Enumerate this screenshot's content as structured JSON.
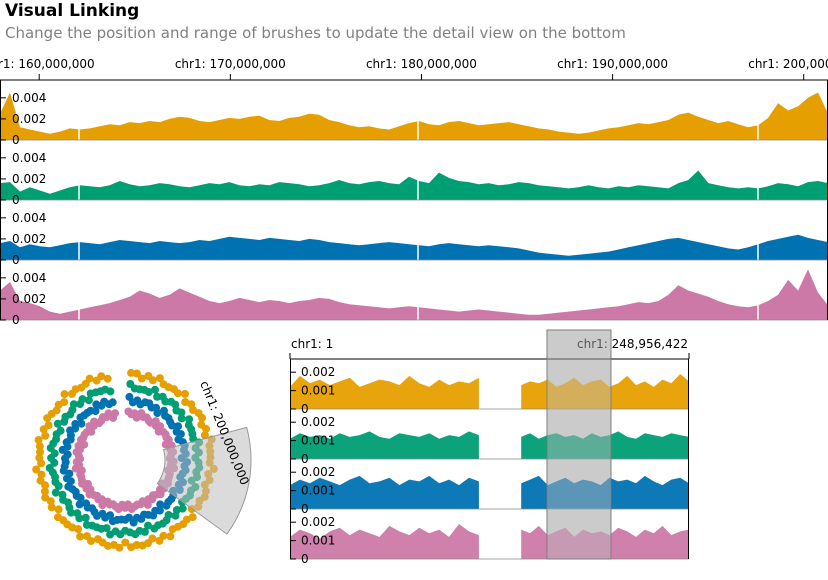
{
  "header": {
    "title": "Visual Linking",
    "subtitle": "Change the position and range of brushes to update the detail view on the bottom"
  },
  "colors": {
    "series": [
      "#E69F00",
      "#009E73",
      "#0072B2",
      "#CC79A7"
    ],
    "brush": "#BDBDBD",
    "axis": "#000000",
    "subtitle": "#808080"
  },
  "chart_data": [
    {
      "type": "area",
      "view": "overview-linear",
      "x_axis": {
        "unit": "genomic position (chr1)",
        "range": [
          160000000,
          200000000
        ],
        "ticks": [
          {
            "value": 160000000,
            "label": "chr1: 160,000,000"
          },
          {
            "value": 170000000,
            "label": "chr1: 170,000,000"
          },
          {
            "value": 180000000,
            "label": "chr1: 180,000,000"
          },
          {
            "value": 190000000,
            "label": "chr1: 190,000,000"
          },
          {
            "value": 200000000,
            "label": "chr1: 200,000,000"
          }
        ]
      },
      "y_ticks": [
        {
          "value": 0,
          "label": "0"
        },
        {
          "value": 0.002,
          "label": "0.002"
        },
        {
          "value": 0.004,
          "label": "0.004"
        }
      ],
      "ylim": [
        0,
        0.0055
      ],
      "series": [
        {
          "values": [
            0.0025,
            0.0045,
            0.0012,
            0.001,
            0.0008,
            0.0006,
            0.0008,
            0.0011,
            0.001,
            0.0011,
            0.0013,
            0.0015,
            0.0014,
            0.0017,
            0.0016,
            0.0018,
            0.0017,
            0.002,
            0.0022,
            0.0021,
            0.0018,
            0.0017,
            0.0019,
            0.0021,
            0.002,
            0.0022,
            0.0023,
            0.0019,
            0.0018,
            0.0021,
            0.0022,
            0.0025,
            0.0024,
            0.0019,
            0.0017,
            0.0014,
            0.0012,
            0.0013,
            0.0011,
            0.001,
            0.0013,
            0.0016,
            0.0018,
            0.0015,
            0.0014,
            0.0017,
            0.0018,
            0.0016,
            0.0014,
            0.0015,
            0.0016,
            0.0017,
            0.0015,
            0.0013,
            0.0011,
            0.001,
            0.0008,
            0.0007,
            0.0006,
            0.0007,
            0.0009,
            0.0011,
            0.0012,
            0.0014,
            0.0016,
            0.0015,
            0.0017,
            0.0019,
            0.0024,
            0.0026,
            0.0022,
            0.0019,
            0.0016,
            0.0018,
            0.0015,
            0.0012,
            0.0014,
            0.0021,
            0.0035,
            0.0028,
            0.0032,
            0.004,
            0.0045,
            0.0025
          ]
        },
        {
          "values": [
            0.0016,
            0.0017,
            0.0008,
            0.0012,
            0.0009,
            0.0006,
            0.0009,
            0.0012,
            0.0014,
            0.0013,
            0.0012,
            0.0014,
            0.0018,
            0.0015,
            0.0013,
            0.0014,
            0.0016,
            0.0015,
            0.0013,
            0.0012,
            0.0014,
            0.0016,
            0.0015,
            0.0017,
            0.0014,
            0.0013,
            0.0015,
            0.0014,
            0.0017,
            0.0016,
            0.0015,
            0.0013,
            0.0014,
            0.0016,
            0.0019,
            0.0016,
            0.0015,
            0.0017,
            0.0018,
            0.0016,
            0.0015,
            0.0022,
            0.0018,
            0.0016,
            0.0026,
            0.0021,
            0.0018,
            0.0017,
            0.0015,
            0.0016,
            0.0014,
            0.0015,
            0.0017,
            0.0016,
            0.0014,
            0.0013,
            0.0012,
            0.0011,
            0.0012,
            0.0014,
            0.0012,
            0.0011,
            0.0013,
            0.0012,
            0.0014,
            0.0013,
            0.0012,
            0.0011,
            0.0016,
            0.0019,
            0.0028,
            0.0016,
            0.0014,
            0.0012,
            0.0011,
            0.0012,
            0.0011,
            0.0013,
            0.0016,
            0.0015,
            0.0013,
            0.0017,
            0.0018,
            0.0016
          ]
        },
        {
          "values": [
            0.0016,
            0.0018,
            0.0012,
            0.0015,
            0.0013,
            0.0012,
            0.0014,
            0.0016,
            0.0017,
            0.0016,
            0.0015,
            0.0017,
            0.0019,
            0.0018,
            0.0017,
            0.0016,
            0.0018,
            0.0017,
            0.0016,
            0.0017,
            0.0019,
            0.0018,
            0.002,
            0.0022,
            0.0021,
            0.002,
            0.0019,
            0.0021,
            0.002,
            0.0019,
            0.0018,
            0.002,
            0.0019,
            0.0017,
            0.0016,
            0.0015,
            0.0014,
            0.0015,
            0.0016,
            0.0017,
            0.0016,
            0.0015,
            0.0014,
            0.0013,
            0.0015,
            0.0016,
            0.0015,
            0.0014,
            0.0013,
            0.0014,
            0.0013,
            0.0012,
            0.0011,
            0.0009,
            0.0007,
            0.0006,
            0.0005,
            0.0004,
            0.0005,
            0.0006,
            0.0007,
            0.0008,
            0.001,
            0.0012,
            0.0014,
            0.0016,
            0.0018,
            0.002,
            0.0021,
            0.0019,
            0.0017,
            0.0015,
            0.0013,
            0.0011,
            0.001,
            0.0012,
            0.0015,
            0.0018,
            0.002,
            0.0022,
            0.0024,
            0.0021,
            0.0019,
            0.0017
          ]
        },
        {
          "values": [
            0.0028,
            0.0036,
            0.0018,
            0.0016,
            0.0013,
            0.0008,
            0.0006,
            0.0008,
            0.001,
            0.0012,
            0.0014,
            0.0016,
            0.0019,
            0.0022,
            0.0028,
            0.0025,
            0.0021,
            0.0024,
            0.003,
            0.0026,
            0.0022,
            0.0018,
            0.0016,
            0.0018,
            0.0021,
            0.0019,
            0.0017,
            0.0019,
            0.0018,
            0.0016,
            0.0018,
            0.0019,
            0.0021,
            0.002,
            0.0017,
            0.0015,
            0.0014,
            0.0013,
            0.0012,
            0.0011,
            0.0012,
            0.0013,
            0.0012,
            0.0011,
            0.001,
            0.0009,
            0.0008,
            0.0009,
            0.001,
            0.0009,
            0.0008,
            0.0007,
            0.0006,
            0.0005,
            0.0005,
            0.0006,
            0.0007,
            0.0008,
            0.0009,
            0.001,
            0.0011,
            0.0012,
            0.0013,
            0.0015,
            0.0017,
            0.0016,
            0.0018,
            0.0024,
            0.0033,
            0.0028,
            0.0025,
            0.0022,
            0.0018,
            0.0015,
            0.0013,
            0.0012,
            0.0014,
            0.0018,
            0.0024,
            0.0038,
            0.0028,
            0.0048,
            0.0026,
            0.0014
          ]
        }
      ]
    },
    {
      "type": "area",
      "view": "circular",
      "label": "chr1: 200,000,000",
      "brush": [
        160000000,
        200000000
      ]
    },
    {
      "type": "area",
      "view": "detail-linear",
      "x_axis": {
        "range": [
          1,
          248956422
        ],
        "ticks": [
          {
            "value": 1,
            "label": "chr1: 1"
          },
          {
            "value": 248956422,
            "label": "chr1: 248,956,422"
          }
        ]
      },
      "y_ticks": [
        {
          "value": 0,
          "label": "0"
        },
        {
          "value": 0.001,
          "label": "0.001"
        },
        {
          "value": 0.002,
          "label": "0.002"
        }
      ],
      "ylim": [
        0,
        0.0025
      ],
      "gap": [
        121000000,
        143000000
      ],
      "brush": [
        160000000,
        200000000
      ],
      "series": [
        {
          "values": [
            0.0012,
            0.0018,
            0.0014,
            0.0016,
            0.0013,
            0.0015,
            0.0017,
            0.0012,
            0.0014,
            0.0016,
            0.0015,
            0.0013,
            0.0018,
            0.0014,
            0.0012,
            0.0016,
            0.0013,
            0.0015,
            0.0014,
            0.0017,
            0.0013,
            0.0015,
            0.0014,
            0.0016,
            0.0012,
            0.0014,
            0.0017,
            0.0013,
            0.0015,
            0.0016,
            0.0012,
            0.0014,
            0.0018,
            0.0013,
            0.0015,
            0.0012,
            0.0016,
            0.0014,
            0.0019,
            0.0015
          ]
        },
        {
          "values": [
            0.0011,
            0.0014,
            0.0012,
            0.0013,
            0.0011,
            0.0014,
            0.0012,
            0.0013,
            0.0015,
            0.0012,
            0.0011,
            0.0014,
            0.0013,
            0.0012,
            0.0014,
            0.0011,
            0.0013,
            0.0012,
            0.0015,
            0.0013,
            0.0012,
            0.0014,
            0.0011,
            0.0013,
            0.0014,
            0.0012,
            0.0013,
            0.0011,
            0.0014,
            0.0012,
            0.0013,
            0.0015,
            0.0012,
            0.0011,
            0.0014,
            0.0013,
            0.0012,
            0.0014,
            0.0013,
            0.0012
          ]
        },
        {
          "values": [
            0.0013,
            0.0016,
            0.0014,
            0.0017,
            0.0015,
            0.0013,
            0.0016,
            0.0018,
            0.0014,
            0.0015,
            0.0017,
            0.0013,
            0.0016,
            0.0015,
            0.0018,
            0.0014,
            0.0016,
            0.0013,
            0.0017,
            0.0015,
            0.0014,
            0.0016,
            0.0018,
            0.0013,
            0.0015,
            0.0017,
            0.0014,
            0.0016,
            0.0015,
            0.0013,
            0.0017,
            0.0015,
            0.0016,
            0.0014,
            0.0018,
            0.0015,
            0.0013,
            0.0016,
            0.0017,
            0.0014
          ]
        },
        {
          "values": [
            0.0012,
            0.0016,
            0.0014,
            0.0011,
            0.0015,
            0.0017,
            0.0013,
            0.0016,
            0.0014,
            0.0012,
            0.0018,
            0.0015,
            0.0013,
            0.0017,
            0.0014,
            0.0016,
            0.0012,
            0.0019,
            0.0015,
            0.0013,
            0.0016,
            0.0014,
            0.0018,
            0.0013,
            0.0015,
            0.0017,
            0.0012,
            0.0016,
            0.0014,
            0.0015,
            0.0013,
            0.0017,
            0.0015,
            0.0012,
            0.0016,
            0.0014,
            0.0018,
            0.0013,
            0.0015,
            0.0016
          ]
        }
      ]
    }
  ]
}
